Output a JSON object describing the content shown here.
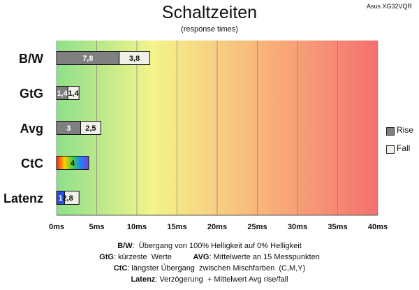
{
  "chart_data": {
    "type": "bar",
    "orientation": "horizontal",
    "stacked": true,
    "title": "Schaltzeiten",
    "subtitle": "(response times)",
    "model_label": "Asus XG32VQR",
    "categories": [
      "B/W",
      "GtG",
      "Avg",
      "CtC",
      "Latenz"
    ],
    "series": [
      {
        "name": "Rise",
        "color": "#808080",
        "values": [
          7.8,
          1.4,
          3,
          null,
          null
        ],
        "labels": [
          "7,8",
          "1,4",
          "3",
          "",
          ""
        ]
      },
      {
        "name": "Fall",
        "color": "#f0f0e8",
        "values": [
          3.8,
          1.4,
          2.5,
          null,
          2.8
        ],
        "labels": [
          "3,8",
          "1,4",
          "2,5",
          "",
          "2,8"
        ]
      }
    ],
    "single_values": [
      {
        "category": "CtC",
        "value": 4,
        "label": "4",
        "fill": "rainbow"
      },
      {
        "category": "Latenz",
        "value": 1,
        "label": "1",
        "fill": "#2a4fd8"
      }
    ],
    "xlim": [
      0,
      40
    ],
    "xticks": [
      0,
      5,
      10,
      15,
      20,
      25,
      30,
      35,
      40
    ],
    "xtick_labels": [
      "0ms",
      "5ms",
      "10ms",
      "15ms",
      "20ms",
      "25ms",
      "30ms",
      "35ms",
      "40ms"
    ],
    "background": "gradient green-yellow-red",
    "grid": true,
    "legend": {
      "position": "right",
      "entries": [
        "Rise",
        "Fall"
      ]
    }
  },
  "footer": [
    {
      "bold": "B/W",
      "text": ":  Übergang von 100% Helligkeit auf 0% Helligkeit"
    },
    {
      "bold": "GtG",
      "text": ": kürzeste  Werte          ",
      "bold2": "AVG",
      "text2": ": Mittelwerte  an 15 Messpunkten"
    },
    {
      "bold": "CtC",
      "text": ": längster Übergang  zwischen Mischfarben  (C,M,Y)"
    },
    {
      "bold": "Latenz",
      "text": ": Verzögerung  + Mittelwert Avg rise/fall"
    }
  ]
}
